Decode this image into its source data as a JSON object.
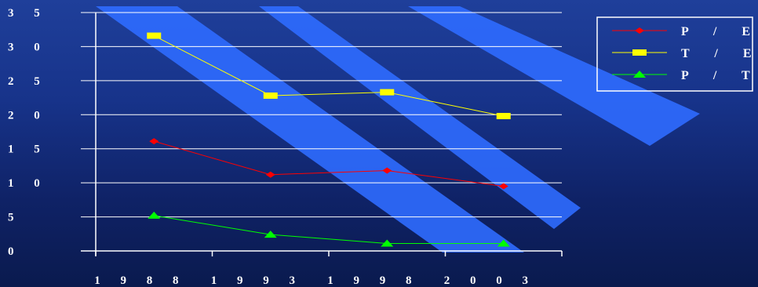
{
  "chart_data": {
    "type": "line",
    "categories": [
      "1 9 8 8",
      "1 9 9 3",
      "1 9 9 8",
      "2 0 0 3"
    ],
    "series": [
      {
        "name": "P / E",
        "values": [
          16.1,
          11.2,
          11.8,
          9.5
        ],
        "color": "#ff0000",
        "marker": "diamond"
      },
      {
        "name": "T / E",
        "values": [
          31.6,
          22.8,
          23.3,
          19.8
        ],
        "color": "#ffff00",
        "marker": "square"
      },
      {
        "name": "P / T",
        "values": [
          5.2,
          2.4,
          1.1,
          1.1
        ],
        "color": "#00ff00",
        "marker": "triangle"
      }
    ],
    "yticks": [
      "0",
      "5",
      "1 0",
      "1 5",
      "2 0",
      "2 5",
      "3 0",
      "3 5"
    ],
    "ylim": [
      0,
      35
    ],
    "grid": true,
    "legend": "top-right",
    "gridline_color": "#ffffff",
    "background_color": "#17338a",
    "stripe_color": "#2f6cff"
  }
}
